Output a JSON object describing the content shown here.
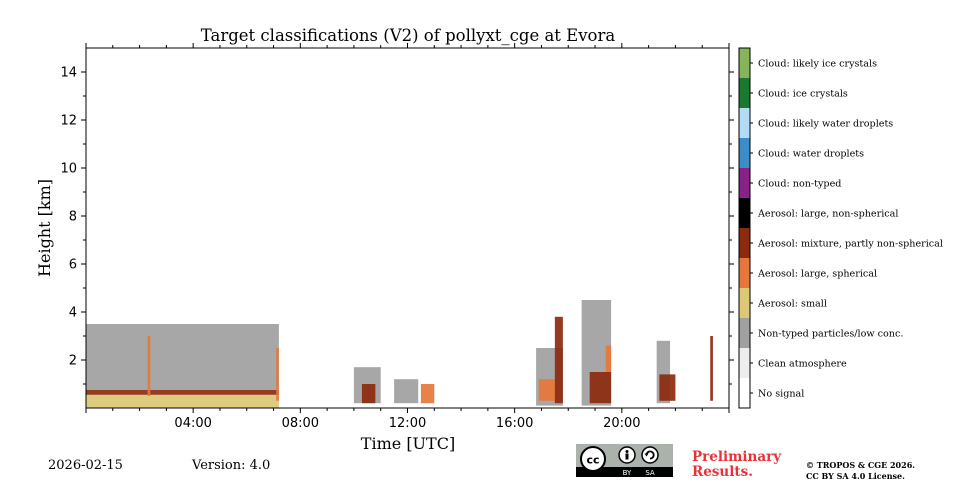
{
  "chart_data": {
    "type": "heatmap",
    "title": "Target classifications (V2) of pollyxt_cge at Evora",
    "xlabel": "Time [UTC]",
    "ylabel": "Height [km]",
    "xlim_hours": [
      0,
      24
    ],
    "ylim_km": [
      0,
      15
    ],
    "x_ticks": [
      {
        "hour": 4,
        "label": "04:00"
      },
      {
        "hour": 8,
        "label": "08:00"
      },
      {
        "hour": 12,
        "label": "12:00"
      },
      {
        "hour": 16,
        "label": "16:00"
      },
      {
        "hour": 20,
        "label": "20:00"
      }
    ],
    "y_ticks": [
      {
        "km": 2,
        "label": "2"
      },
      {
        "km": 4,
        "label": "4"
      },
      {
        "km": 6,
        "label": "6"
      },
      {
        "km": 8,
        "label": "8"
      },
      {
        "km": 10,
        "label": "10"
      },
      {
        "km": 12,
        "label": "12"
      },
      {
        "km": 14,
        "label": "14"
      }
    ],
    "classes": [
      {
        "label": "No signal",
        "color": "#ffffff"
      },
      {
        "label": "Clean atmosphere",
        "color": "#ededed"
      },
      {
        "label": "Non-typed particles/low conc.",
        "color": "#a0a0a0"
      },
      {
        "label": "Aerosol: small",
        "color": "#dcc774"
      },
      {
        "label": "Aerosol: large, spherical",
        "color": "#e6773c"
      },
      {
        "label": "Aerosol: mixture, partly non-spherical",
        "color": "#8c2a0e"
      },
      {
        "label": "Aerosol: large, non-spherical",
        "color": "#000000"
      },
      {
        "label": "Cloud: non-typed",
        "color": "#882288"
      },
      {
        "label": "Cloud: water droplets",
        "color": "#3c8cca"
      },
      {
        "label": "Cloud: likely water droplets",
        "color": "#b2dcf6"
      },
      {
        "label": "Cloud: ice crystals",
        "color": "#1a7830"
      },
      {
        "label": "Cloud: likely ice crystals",
        "color": "#86b458"
      }
    ],
    "regions": [
      {
        "t0": 0.0,
        "t1": 7.2,
        "h0": 0.0,
        "h1": 0.55,
        "class": "Aerosol: small"
      },
      {
        "t0": 0.0,
        "t1": 7.2,
        "h0": 0.55,
        "h1": 0.75,
        "class": "Aerosol: mixture, partly non-spherical"
      },
      {
        "t0": 0.0,
        "t1": 7.2,
        "h0": 0.75,
        "h1": 3.5,
        "class": "Non-typed particles/low conc."
      },
      {
        "t0": 2.3,
        "t1": 2.4,
        "h0": 0.5,
        "h1": 3.0,
        "class": "Aerosol: large, spherical"
      },
      {
        "t0": 7.1,
        "t1": 7.2,
        "h0": 0.3,
        "h1": 2.5,
        "class": "Aerosol: large, spherical"
      },
      {
        "t0": 10.0,
        "t1": 11.0,
        "h0": 0.2,
        "h1": 1.7,
        "class": "Non-typed particles/low conc."
      },
      {
        "t0": 10.3,
        "t1": 10.8,
        "h0": 0.2,
        "h1": 1.0,
        "class": "Aerosol: mixture, partly non-spherical"
      },
      {
        "t0": 11.5,
        "t1": 12.4,
        "h0": 0.2,
        "h1": 1.2,
        "class": "Non-typed particles/low conc."
      },
      {
        "t0": 12.5,
        "t1": 13.0,
        "h0": 0.2,
        "h1": 1.0,
        "class": "Aerosol: large, spherical"
      },
      {
        "t0": 16.8,
        "t1": 17.8,
        "h0": 0.1,
        "h1": 2.5,
        "class": "Non-typed particles/low conc."
      },
      {
        "t0": 16.9,
        "t1": 17.6,
        "h0": 0.3,
        "h1": 1.2,
        "class": "Aerosol: large, spherical"
      },
      {
        "t0": 17.5,
        "t1": 17.8,
        "h0": 0.2,
        "h1": 3.8,
        "class": "Aerosol: mixture, partly non-spherical"
      },
      {
        "t0": 18.5,
        "t1": 19.6,
        "h0": 0.1,
        "h1": 4.5,
        "class": "Non-typed particles/low conc."
      },
      {
        "t0": 18.8,
        "t1": 19.6,
        "h0": 0.2,
        "h1": 1.5,
        "class": "Aerosol: mixture, partly non-spherical"
      },
      {
        "t0": 19.4,
        "t1": 19.6,
        "h0": 1.5,
        "h1": 2.6,
        "class": "Aerosol: large, spherical"
      },
      {
        "t0": 21.3,
        "t1": 21.8,
        "h0": 0.2,
        "h1": 2.8,
        "class": "Non-typed particles/low conc."
      },
      {
        "t0": 21.4,
        "t1": 22.0,
        "h0": 0.3,
        "h1": 1.4,
        "class": "Aerosol: mixture, partly non-spherical"
      },
      {
        "t0": 23.3,
        "t1": 23.4,
        "h0": 0.3,
        "h1": 3.0,
        "class": "Aerosol: mixture, partly non-spherical"
      }
    ]
  },
  "footer": {
    "date": "2026-02-15",
    "version": "Version: 4.0",
    "preliminary_line1": "Preliminary",
    "preliminary_line2": "Results.",
    "copyright_line1": "© TROPOS & CGE 2026.",
    "copyright_line2": "CC BY SA 4.0 License."
  },
  "license_badge": {
    "cc": "cc",
    "by": "BY",
    "sa": "SA"
  }
}
